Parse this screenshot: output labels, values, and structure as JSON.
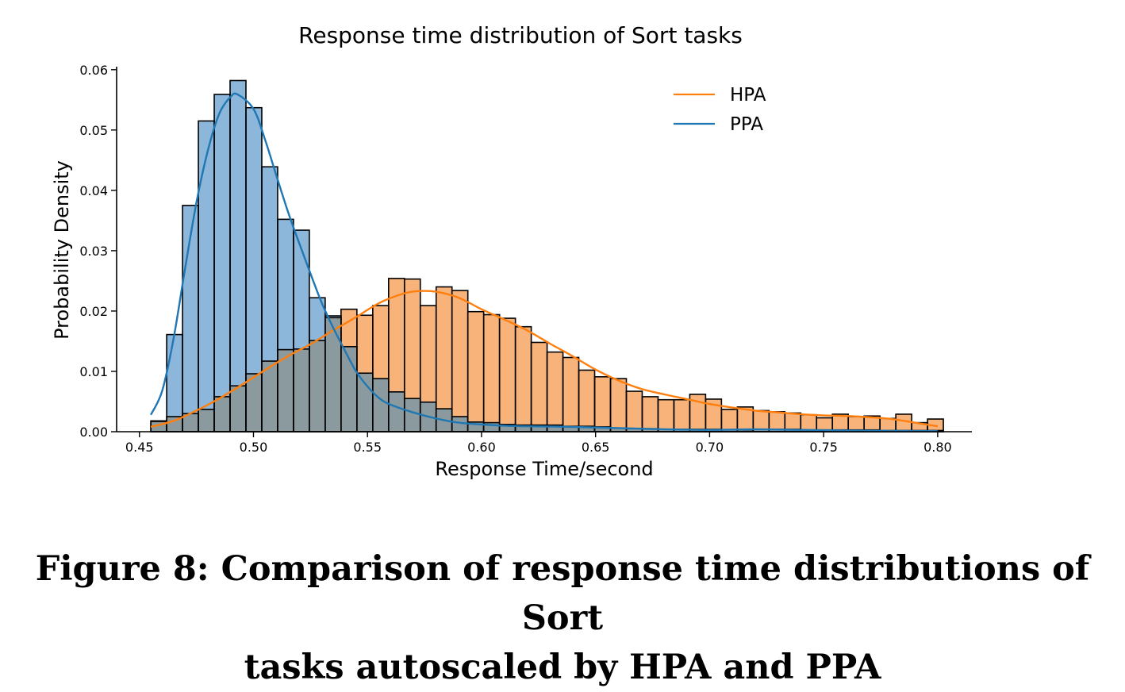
{
  "caption": {
    "line1": "Figure 8: Comparison of response time distributions of Sort",
    "line2": "tasks autoscaled by HPA and PPA"
  },
  "colors": {
    "hpa_fill": "#f7b37a",
    "ppa_fill": "#8db7da",
    "overlap_fill": "#8a9a9e",
    "hpa_line": "#ff7f0e",
    "ppa_line": "#1f77b4",
    "edge": "#000000"
  },
  "chart_data": {
    "type": "bar",
    "subtype": "histogram with density curves",
    "title": "Response time distribution of Sort tasks",
    "xlabel": "Response Time/second",
    "ylabel": "Probability Density",
    "xlim": [
      0.44,
      0.815
    ],
    "ylim": [
      0,
      0.0605
    ],
    "xticks": [
      "0.45",
      "0.50",
      "0.55",
      "0.60",
      "0.65",
      "0.70",
      "0.75",
      "0.80"
    ],
    "yticks": [
      "0.00",
      "0.01",
      "0.02",
      "0.03",
      "0.04",
      "0.05",
      "0.06"
    ],
    "legend_position": "top-right",
    "bins": {
      "start": 0.455,
      "width": 0.00695,
      "count": 50
    },
    "series": [
      {
        "name": "HPA",
        "values": [
          0.0017,
          0.0025,
          0.003,
          0.0037,
          0.0058,
          0.0076,
          0.0096,
          0.0117,
          0.0136,
          0.0137,
          0.0151,
          0.0189,
          0.0203,
          0.0193,
          0.0209,
          0.0254,
          0.0253,
          0.0209,
          0.024,
          0.0234,
          0.0199,
          0.0194,
          0.0188,
          0.0174,
          0.0148,
          0.0132,
          0.0123,
          0.0102,
          0.0091,
          0.0088,
          0.0067,
          0.0058,
          0.0053,
          0.0053,
          0.0062,
          0.0054,
          0.0037,
          0.0041,
          0.0035,
          0.0033,
          0.0031,
          0.0028,
          0.0023,
          0.0029,
          0.0025,
          0.0026,
          0.0022,
          0.0029,
          0.0015,
          0.0021
        ],
        "kde": [
          [
            0.455,
            0.0008
          ],
          [
            0.465,
            0.0018
          ],
          [
            0.475,
            0.0035
          ],
          [
            0.485,
            0.0055
          ],
          [
            0.495,
            0.0078
          ],
          [
            0.505,
            0.0102
          ],
          [
            0.515,
            0.0125
          ],
          [
            0.525,
            0.0145
          ],
          [
            0.535,
            0.0168
          ],
          [
            0.545,
            0.019
          ],
          [
            0.555,
            0.0213
          ],
          [
            0.565,
            0.0228
          ],
          [
            0.572,
            0.0233
          ],
          [
            0.58,
            0.0232
          ],
          [
            0.59,
            0.0222
          ],
          [
            0.6,
            0.0203
          ],
          [
            0.61,
            0.0186
          ],
          [
            0.62,
            0.0168
          ],
          [
            0.63,
            0.0146
          ],
          [
            0.64,
            0.0125
          ],
          [
            0.65,
            0.0103
          ],
          [
            0.66,
            0.0085
          ],
          [
            0.67,
            0.0071
          ],
          [
            0.68,
            0.0062
          ],
          [
            0.69,
            0.0054
          ],
          [
            0.7,
            0.0046
          ],
          [
            0.71,
            0.004
          ],
          [
            0.72,
            0.0035
          ],
          [
            0.73,
            0.0032
          ],
          [
            0.74,
            0.0029
          ],
          [
            0.75,
            0.0027
          ],
          [
            0.76,
            0.0026
          ],
          [
            0.77,
            0.0024
          ],
          [
            0.78,
            0.0021
          ],
          [
            0.79,
            0.0015
          ],
          [
            0.8,
            0.0009
          ]
        ]
      },
      {
        "name": "PPA",
        "values": [
          0.0018,
          0.0161,
          0.0375,
          0.0515,
          0.0559,
          0.0582,
          0.0537,
          0.0439,
          0.0352,
          0.0334,
          0.0222,
          0.0192,
          0.0141,
          0.0097,
          0.0088,
          0.0066,
          0.0055,
          0.0049,
          0.0038,
          0.0025,
          0.0016,
          0.0015,
          0.0012,
          0.0011,
          0.0011,
          0.0011,
          0.0009,
          0.0009,
          0.0008,
          0.0006,
          0.0005,
          0.0005,
          0.0004,
          0.0004,
          0.0004,
          0.0004,
          0.0003,
          0.0003,
          0.0004,
          0.0004,
          0.0004,
          0.0003,
          0.0003,
          0.0003,
          0.0003,
          0.0003,
          0.0002,
          0.0002,
          0.0002,
          0.0002
        ],
        "kde": [
          [
            0.455,
            0.0028
          ],
          [
            0.46,
            0.0068
          ],
          [
            0.465,
            0.0155
          ],
          [
            0.47,
            0.027
          ],
          [
            0.475,
            0.038
          ],
          [
            0.48,
            0.0466
          ],
          [
            0.485,
            0.0527
          ],
          [
            0.49,
            0.0555
          ],
          [
            0.493,
            0.0559
          ],
          [
            0.5,
            0.0535
          ],
          [
            0.505,
            0.0485
          ],
          [
            0.51,
            0.0425
          ],
          [
            0.515,
            0.0366
          ],
          [
            0.52,
            0.0313
          ],
          [
            0.525,
            0.0262
          ],
          [
            0.53,
            0.0213
          ],
          [
            0.535,
            0.0172
          ],
          [
            0.54,
            0.0135
          ],
          [
            0.545,
            0.01
          ],
          [
            0.55,
            0.0075
          ],
          [
            0.555,
            0.0056
          ],
          [
            0.56,
            0.0045
          ],
          [
            0.57,
            0.0032
          ],
          [
            0.58,
            0.0022
          ],
          [
            0.59,
            0.0015
          ],
          [
            0.6,
            0.0012
          ],
          [
            0.61,
            0.001
          ],
          [
            0.62,
            0.0009
          ],
          [
            0.64,
            0.0008
          ],
          [
            0.66,
            0.0006
          ],
          [
            0.68,
            0.0004
          ],
          [
            0.7,
            0.0003
          ],
          [
            0.72,
            0.0004
          ],
          [
            0.74,
            0.0003
          ],
          [
            0.76,
            0.0002
          ],
          [
            0.8,
            0.0001
          ]
        ]
      }
    ]
  }
}
